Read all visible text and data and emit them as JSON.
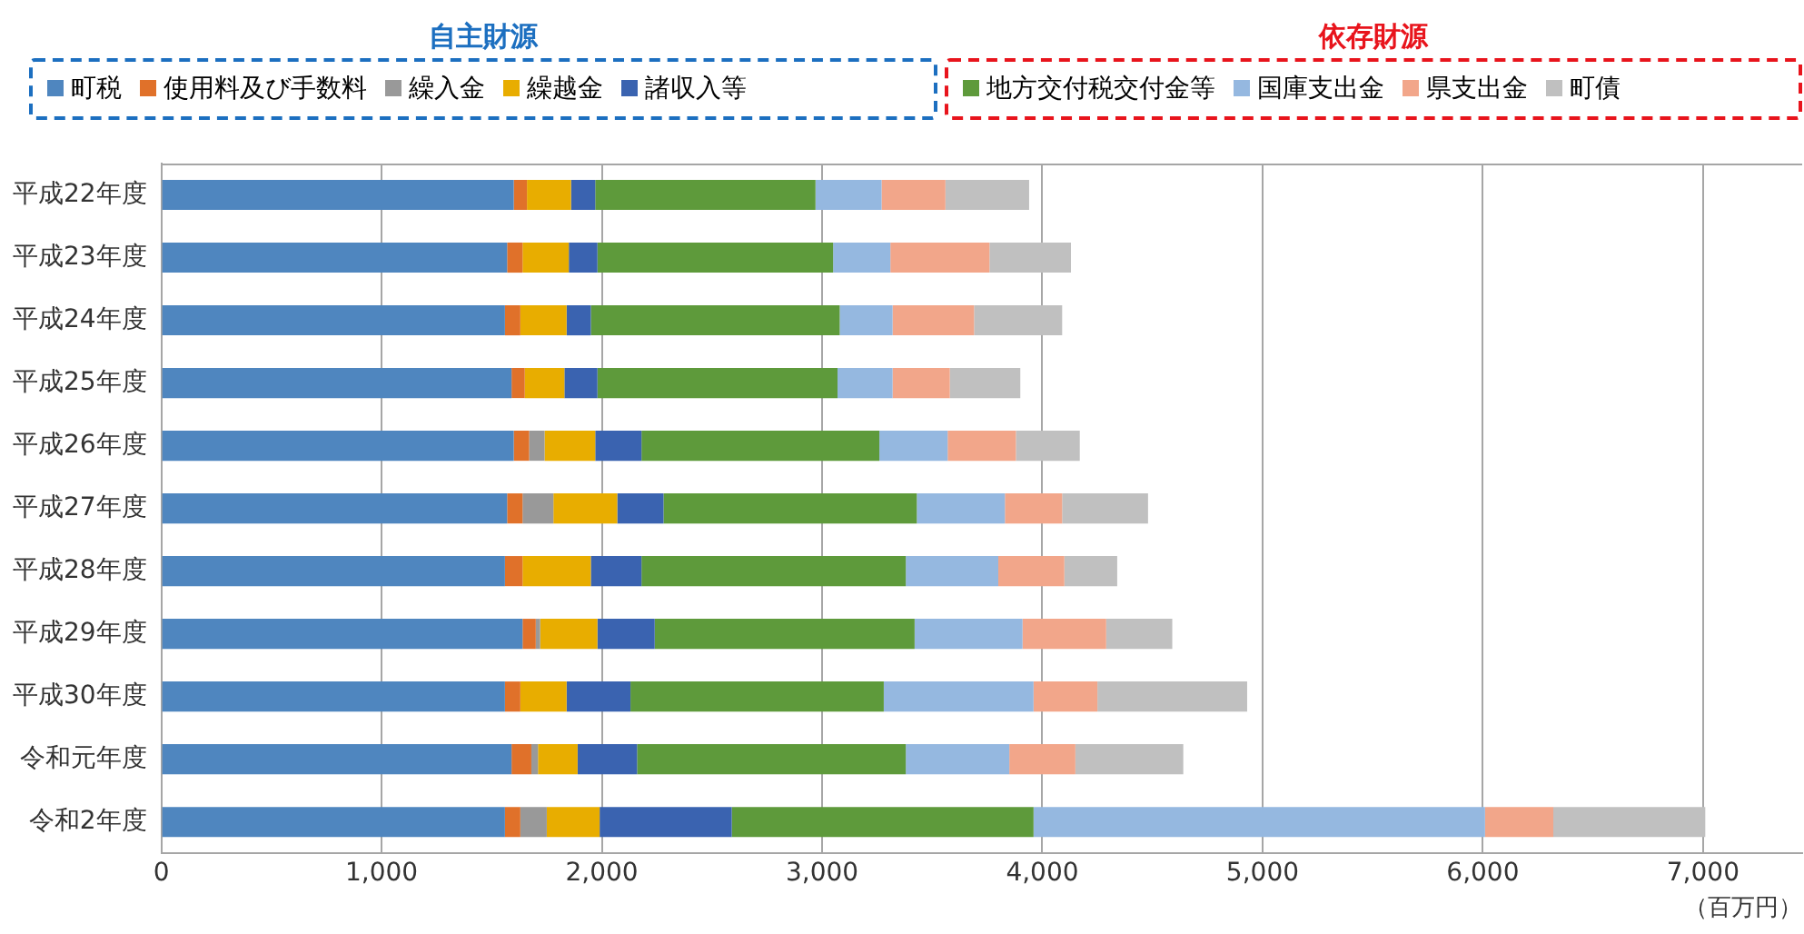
{
  "chart_data": {
    "type": "bar",
    "orientation": "horizontal",
    "stacked": true,
    "categories": [
      "平成22年度",
      "平成23年度",
      "平成24年度",
      "平成25年度",
      "平成26年度",
      "平成27年度",
      "平成28年度",
      "平成29年度",
      "平成30年度",
      "令和元年度",
      "令和2年度"
    ],
    "series": [
      {
        "name": "町税",
        "color": "#4f86bf",
        "values": [
          1600,
          1570,
          1560,
          1590,
          1600,
          1570,
          1560,
          1640,
          1560,
          1590,
          1560
        ]
      },
      {
        "name": "使用料及び手数料",
        "color": "#e0712a",
        "values": [
          60,
          70,
          70,
          60,
          70,
          70,
          80,
          60,
          70,
          90,
          70
        ]
      },
      {
        "name": "繰入金",
        "color": "#999999",
        "values": [
          0,
          0,
          0,
          0,
          70,
          140,
          0,
          20,
          0,
          30,
          120
        ]
      },
      {
        "name": "繰越金",
        "color": "#e8ad00",
        "values": [
          200,
          210,
          210,
          180,
          230,
          290,
          310,
          260,
          210,
          180,
          240
        ]
      },
      {
        "name": "諸収入等",
        "color": "#3a63b0",
        "values": [
          110,
          130,
          110,
          150,
          210,
          210,
          230,
          260,
          290,
          270,
          600
        ]
      },
      {
        "name": "地方交付税交付金等",
        "color": "#5e9a3b",
        "values": [
          1000,
          1070,
          1130,
          1090,
          1080,
          1150,
          1200,
          1180,
          1150,
          1220,
          1370
        ]
      },
      {
        "name": "国庫支出金",
        "color": "#95b8e0",
        "values": [
          300,
          260,
          240,
          250,
          310,
          400,
          420,
          490,
          680,
          470,
          2050
        ]
      },
      {
        "name": "県支出金",
        "color": "#f2a68a",
        "values": [
          290,
          450,
          370,
          260,
          310,
          260,
          300,
          380,
          290,
          300,
          310
        ]
      },
      {
        "name": "町債",
        "color": "#c0c0c0",
        "values": [
          380,
          370,
          400,
          320,
          290,
          390,
          240,
          300,
          680,
          490,
          690
        ]
      }
    ],
    "xlim": [
      0,
      7450
    ],
    "xticks": [
      0,
      {
        "value": 1000,
        "label": "1,000"
      },
      {
        "value": 2000,
        "label": "2,000"
      },
      {
        "value": 3000,
        "label": "3,000"
      },
      {
        "value": 4000,
        "label": "4,000"
      },
      {
        "value": 5000,
        "label": "5,000"
      },
      {
        "value": 6000,
        "label": "6,000"
      },
      {
        "value": 7000,
        "label": "7,000"
      }
    ],
    "xlabel": "（百万円）",
    "grid": "x",
    "legend": "top",
    "annotations": [
      "自主財源",
      "依存財源"
    ]
  }
}
